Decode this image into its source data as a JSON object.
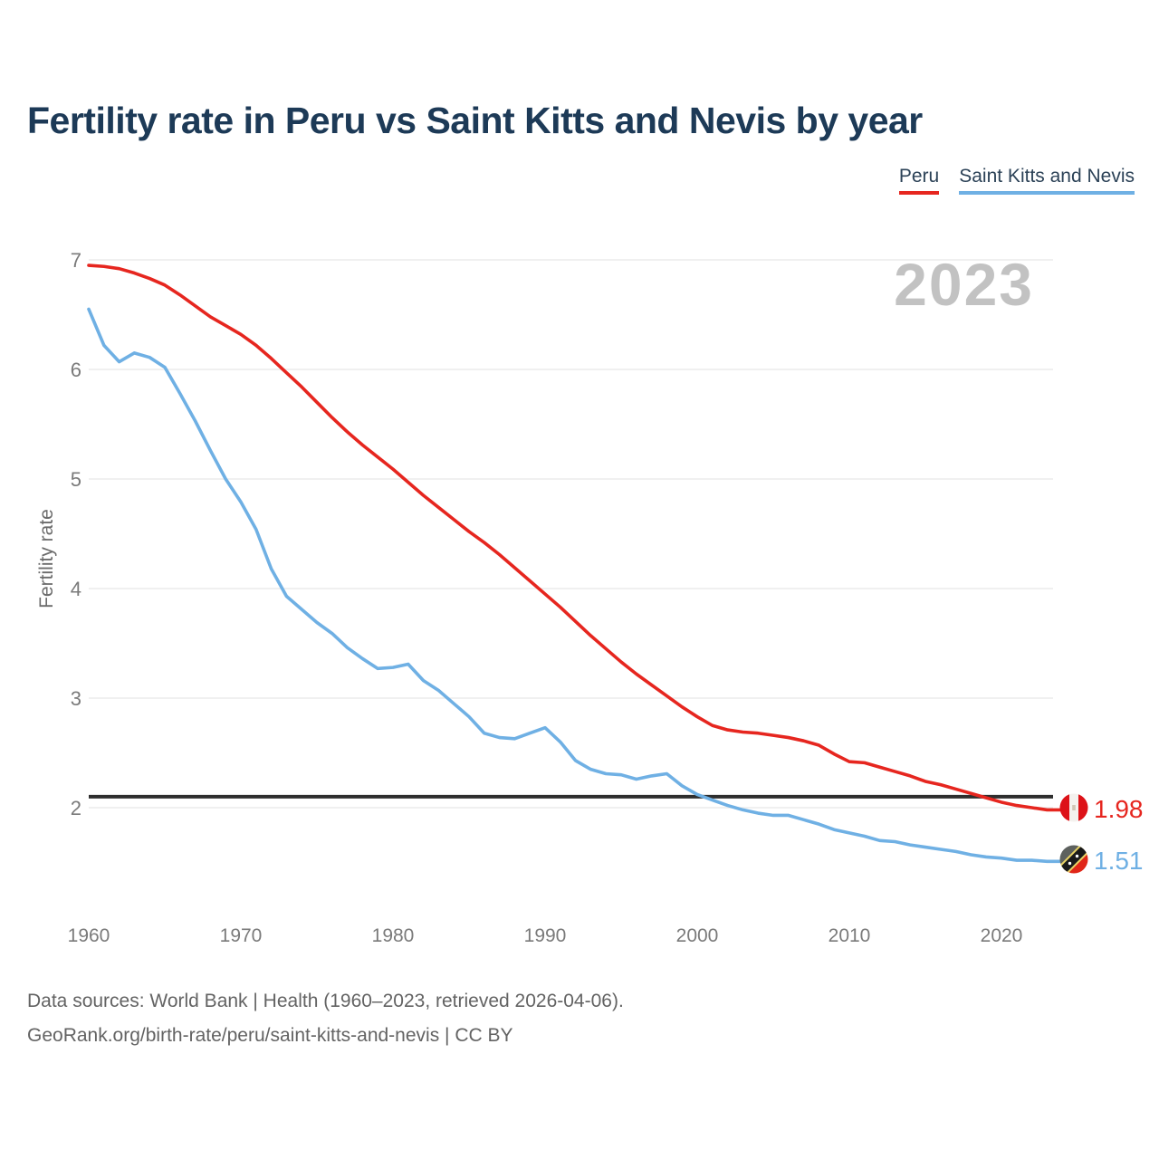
{
  "header": {
    "title": "Fertility rate in Peru vs Saint Kitts and Nevis by year"
  },
  "legend": [
    {
      "label": "Peru",
      "color": "#e6261f"
    },
    {
      "label": "Saint Kitts and Nevis",
      "color": "#6fb0e4"
    }
  ],
  "watermark": "2023",
  "chart_data": {
    "type": "line",
    "title": "Fertility rate in Peru vs Saint Kitts and Nevis by year",
    "xlabel": "",
    "ylabel": "Fertility rate",
    "grid": "horizontal",
    "legend_position": "top-right",
    "xlim": [
      1960,
      2023
    ],
    "ylim": [
      1.3,
      7.05
    ],
    "x_ticks": [
      1960,
      1970,
      1980,
      1990,
      2000,
      2010,
      2020
    ],
    "y_ticks": [
      7,
      6,
      5,
      4,
      3,
      2
    ],
    "reference_line": {
      "value": 2.1,
      "color": "#2e2e2e"
    },
    "x": [
      1960,
      1961,
      1962,
      1963,
      1964,
      1965,
      1966,
      1967,
      1968,
      1969,
      1970,
      1971,
      1972,
      1973,
      1974,
      1975,
      1976,
      1977,
      1978,
      1979,
      1980,
      1981,
      1982,
      1983,
      1984,
      1985,
      1986,
      1987,
      1988,
      1989,
      1990,
      1991,
      1992,
      1993,
      1994,
      1995,
      1996,
      1997,
      1998,
      1999,
      2000,
      2001,
      2002,
      2003,
      2004,
      2005,
      2006,
      2007,
      2008,
      2009,
      2010,
      2011,
      2012,
      2013,
      2014,
      2015,
      2016,
      2017,
      2018,
      2019,
      2020,
      2021,
      2022,
      2023
    ],
    "series": [
      {
        "name": "Peru",
        "color": "#e6261f",
        "end_label": "1.98",
        "end_value": 1.98,
        "values": [
          6.95,
          6.94,
          6.92,
          6.88,
          6.83,
          6.77,
          6.68,
          6.58,
          6.48,
          6.4,
          6.32,
          6.22,
          6.1,
          5.97,
          5.84,
          5.7,
          5.56,
          5.43,
          5.31,
          5.2,
          5.09,
          4.97,
          4.85,
          4.74,
          4.63,
          4.52,
          4.42,
          4.31,
          4.19,
          4.07,
          3.95,
          3.83,
          3.7,
          3.57,
          3.45,
          3.33,
          3.22,
          3.12,
          3.02,
          2.92,
          2.83,
          2.75,
          2.71,
          2.69,
          2.68,
          2.66,
          2.64,
          2.61,
          2.57,
          2.49,
          2.42,
          2.41,
          2.37,
          2.33,
          2.29,
          2.24,
          2.21,
          2.17,
          2.13,
          2.09,
          2.05,
          2.02,
          2.0,
          1.98
        ]
      },
      {
        "name": "Saint Kitts and Nevis",
        "color": "#6fb0e4",
        "end_label": "1.51",
        "end_value": 1.51,
        "values": [
          6.55,
          6.22,
          6.07,
          6.15,
          6.11,
          6.02,
          5.78,
          5.53,
          5.26,
          5.0,
          4.79,
          4.54,
          4.18,
          3.93,
          3.81,
          3.69,
          3.59,
          3.46,
          3.36,
          3.27,
          3.28,
          3.31,
          3.16,
          3.07,
          2.95,
          2.83,
          2.68,
          2.64,
          2.63,
          2.68,
          2.73,
          2.6,
          2.43,
          2.35,
          2.31,
          2.3,
          2.26,
          2.29,
          2.31,
          2.2,
          2.12,
          2.07,
          2.02,
          1.98,
          1.95,
          1.93,
          1.93,
          1.89,
          1.85,
          1.8,
          1.77,
          1.74,
          1.7,
          1.69,
          1.66,
          1.64,
          1.62,
          1.6,
          1.57,
          1.55,
          1.54,
          1.52,
          1.52,
          1.51
        ]
      }
    ]
  },
  "footer": {
    "line1": "Data sources: World Bank | Health (1960–2023, retrieved 2026-04-06).",
    "line2": "GeoRank.org/birth-rate/peru/saint-kitts-and-nevis | CC BY"
  }
}
